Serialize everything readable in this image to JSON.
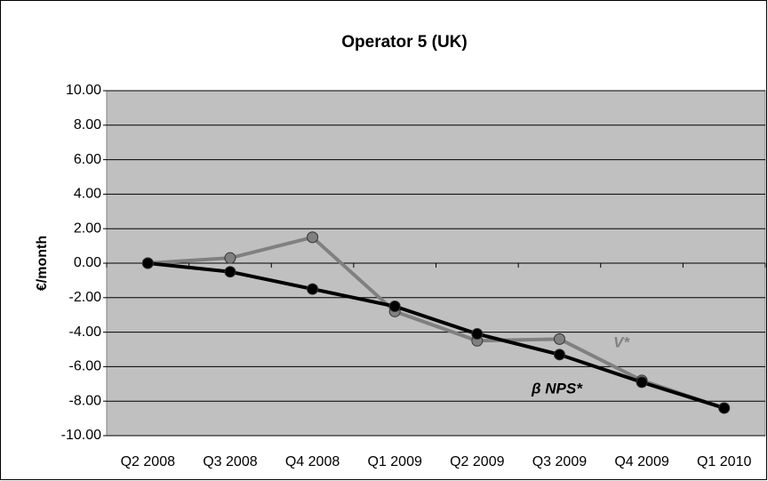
{
  "chart_data": {
    "type": "line",
    "title": "Operator 5 (UK)",
    "y_label": "€/month",
    "categories": [
      "Q2 2008",
      "Q3 2008",
      "Q4 2008",
      "Q1 2009",
      "Q2 2009",
      "Q3 2009",
      "Q4 2009",
      "Q1 2010"
    ],
    "series": [
      {
        "name": "β NPS*",
        "color": "#000000",
        "values": [
          0,
          -0.5,
          -1.5,
          -2.5,
          -4.1,
          -5.3,
          -6.9,
          -8.4
        ]
      },
      {
        "name": "V*",
        "color": "#808080",
        "values": [
          0,
          0.3,
          1.5,
          -2.8,
          -4.5,
          -4.4,
          -6.8,
          -8.4
        ]
      }
    ],
    "ylim": [
      -10,
      10
    ],
    "yticks": [
      {
        "value": -10,
        "label": "-10.00"
      },
      {
        "value": -8,
        "label": "-8.00"
      },
      {
        "value": -6,
        "label": "-6.00"
      },
      {
        "value": -4,
        "label": "-4.00"
      },
      {
        "value": -2,
        "label": "-2.00"
      },
      {
        "value": 0,
        "label": "0.00"
      },
      {
        "value": 2,
        "label": "2.00"
      },
      {
        "value": 4,
        "label": "4.00"
      },
      {
        "value": 6,
        "label": "6.00"
      },
      {
        "value": 8,
        "label": "8.00"
      },
      {
        "value": 10,
        "label": "10.00"
      }
    ],
    "grid": true,
    "plot_background": "#c0c0c0"
  }
}
